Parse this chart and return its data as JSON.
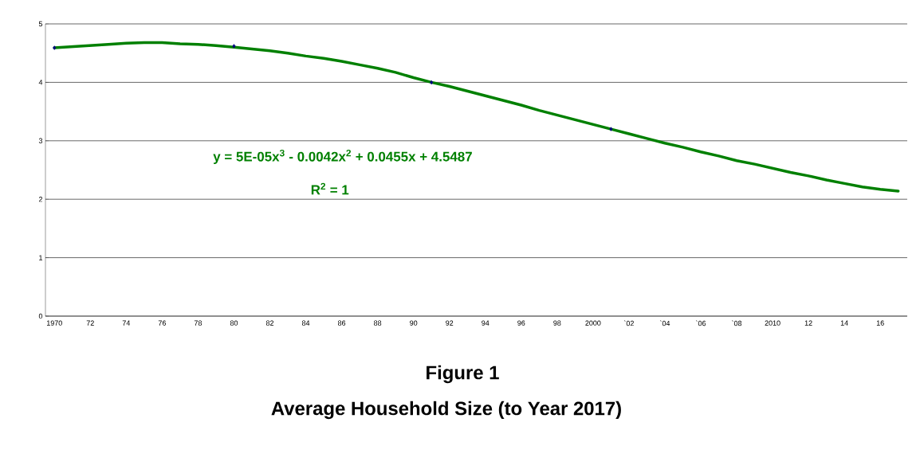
{
  "chart_data": {
    "type": "line",
    "title": "Figure 1",
    "subtitle": "Average Household Size (to Year 2017)",
    "categories": [
      "1970",
      null,
      "72",
      null,
      "74",
      null,
      "76",
      null,
      "78",
      null,
      "80",
      null,
      "82",
      null,
      "84",
      null,
      "86",
      null,
      "88",
      null,
      "90",
      null,
      "92",
      null,
      "94",
      null,
      "96",
      null,
      "98",
      null,
      "2000",
      null,
      "`02",
      null,
      "`04",
      null,
      "`06",
      null,
      "`08",
      null,
      "2010",
      null,
      "12",
      null,
      "14",
      null,
      "16",
      null
    ],
    "series": [
      {
        "color": "#008000",
        "marker": "none",
        "values": [
          4.59,
          4.61,
          4.63,
          4.65,
          4.67,
          4.68,
          4.68,
          4.66,
          4.65,
          4.63,
          4.6,
          4.57,
          4.54,
          4.5,
          4.45,
          4.41,
          4.36,
          4.3,
          4.24,
          4.17,
          4.08,
          4.0,
          3.93,
          3.85,
          3.77,
          3.69,
          3.61,
          3.52,
          3.44,
          3.36,
          3.28,
          3.2,
          3.12,
          3.04,
          2.96,
          2.89,
          2.81,
          2.74,
          2.66,
          2.6,
          2.53,
          2.46,
          2.4,
          2.33,
          2.27,
          2.21,
          2.17,
          2.14
        ]
      },
      {
        "type": "scatter",
        "color": "#000080",
        "marker": "diamond",
        "values": [
          4.59,
          null,
          null,
          null,
          null,
          null,
          null,
          null,
          null,
          null,
          4.62,
          null,
          null,
          null,
          null,
          null,
          null,
          null,
          null,
          null,
          null,
          4.0,
          null,
          null,
          null,
          null,
          null,
          null,
          null,
          null,
          null,
          3.2,
          null,
          null,
          null,
          null,
          null,
          null,
          null,
          null,
          null,
          null,
          null,
          null,
          null,
          null,
          null,
          null
        ]
      }
    ],
    "ylim": [
      0,
      5
    ],
    "yticks": [
      0,
      1,
      2,
      3,
      4,
      5
    ],
    "grid": "y",
    "annotations": [
      "y = 5E-05x$^{3}$ - 0.0042x$^{2}$ + 0.0455x + 4.5487",
      "R$^{2}$ = 1"
    ]
  }
}
